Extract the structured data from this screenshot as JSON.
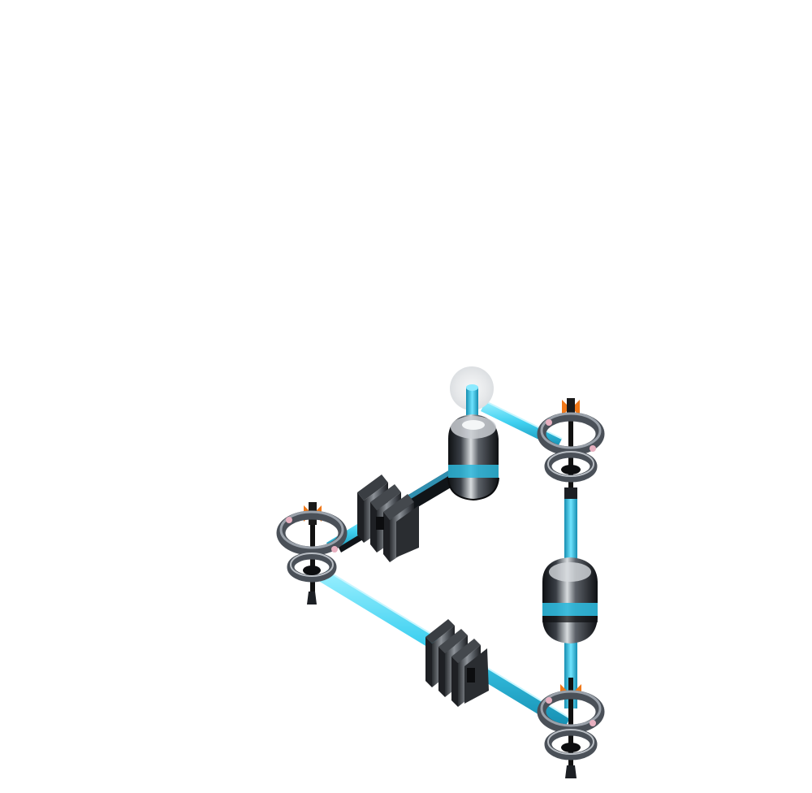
{
  "scene": {
    "background": "#ffffff",
    "colors": {
      "beam": "#3fd0f0",
      "beam_light": "#8ceaff",
      "beam_dark": "#1aa6c8",
      "beam_core": "#101418",
      "metal_dark": "#1c1f24",
      "metal_mid": "#5a5f66",
      "metal_light": "#b9bec4",
      "ring": "#4a5058",
      "ring_light": "#9aa1aa",
      "accent_orange": "#f07818",
      "accent_pink": "#e8b0c0",
      "glow": "#e4e6e8"
    },
    "components": [
      {
        "kind": "bender-magnet",
        "icon": "bender-magnet-icon"
      },
      {
        "kind": "quadrupole-cell",
        "icon": "quadrupole-icon"
      },
      {
        "kind": "focusing-ring",
        "icon": "focusing-ring-icon"
      },
      {
        "kind": "beam-pipe",
        "icon": "beam-pipe-icon"
      },
      {
        "kind": "emitter-source",
        "icon": "emitter-icon"
      }
    ]
  }
}
